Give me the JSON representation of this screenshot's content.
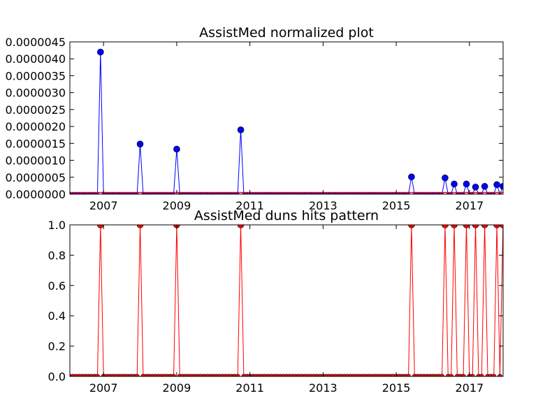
{
  "chart_data": [
    {
      "type": "line",
      "title": "AssistMed normalized plot",
      "xlabel": "",
      "ylabel": "",
      "xlim": [
        2006.08,
        2017.92
      ],
      "ylim": [
        0,
        4.5e-06
      ],
      "x_tick_labels": [
        "2007",
        "2009",
        "2011",
        "2013",
        "2015",
        "2017"
      ],
      "y_tick_labels": [
        "0.0000000",
        "0.0000005",
        "0.0000010",
        "0.0000015",
        "0.0000020",
        "0.0000025",
        "0.0000030",
        "0.0000035",
        "0.0000040",
        "0.0000045"
      ],
      "grid": false,
      "series": [
        {
          "color": "#0000ff",
          "marker": "circle",
          "points": [
            {
              "x": 2006.92,
              "y": 4.2e-06
            },
            {
              "x": 2008.0,
              "y": 1.48e-06
            },
            {
              "x": 2009.0,
              "y": 1.33e-06
            },
            {
              "x": 2010.75,
              "y": 1.9e-06
            },
            {
              "x": 2015.42,
              "y": 5.1e-07
            },
            {
              "x": 2016.33,
              "y": 4.8e-07
            },
            {
              "x": 2016.58,
              "y": 3e-07
            },
            {
              "x": 2016.92,
              "y": 3e-07
            },
            {
              "x": 2017.17,
              "y": 2.1e-07
            },
            {
              "x": 2017.42,
              "y": 2.3e-07
            },
            {
              "x": 2017.75,
              "y": 2.8e-07
            },
            {
              "x": 2017.92,
              "y": 2.3e-07
            }
          ]
        },
        {
          "color": "#ff0000",
          "marker": "none",
          "points": [
            {
              "x": 2006.08,
              "y": 5e-08
            },
            {
              "x": 2017.92,
              "y": 5e-08
            }
          ]
        }
      ]
    },
    {
      "type": "line",
      "title": "AssistMed duns hits pattern",
      "xlabel": "",
      "ylabel": "",
      "xlim": [
        2006.08,
        2017.92
      ],
      "ylim": [
        0,
        1
      ],
      "x_tick_labels": [
        "2007",
        "2009",
        "2011",
        "2013",
        "2015",
        "2017"
      ],
      "y_tick_labels": [
        "0.0",
        "0.2",
        "0.4",
        "0.6",
        "0.8",
        "1.0"
      ],
      "grid": false,
      "series": [
        {
          "color": "#ff0000",
          "marker": "circle",
          "hits": [
            2006.92,
            2008.0,
            2009.0,
            2010.75,
            2015.42,
            2016.33,
            2016.58,
            2016.92,
            2017.17,
            2017.42,
            2017.75,
            2017.92
          ]
        }
      ]
    }
  ]
}
